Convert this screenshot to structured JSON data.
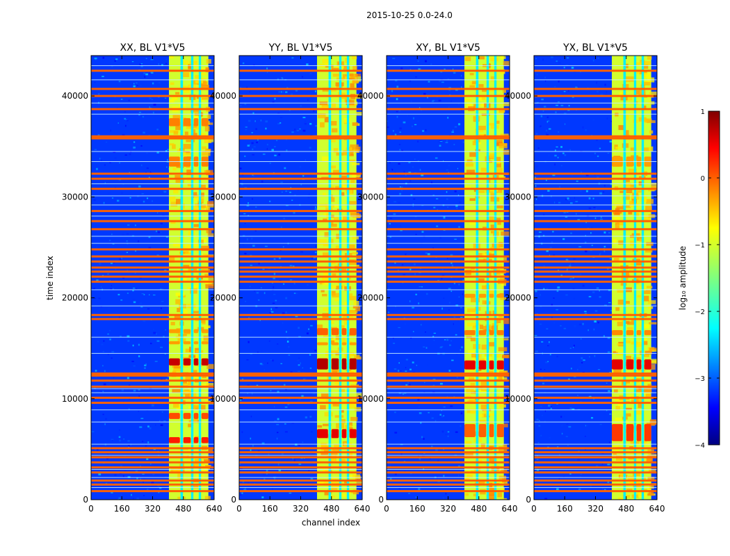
{
  "chart_data": {
    "type": "heatmap",
    "suptitle": "2015-10-25 0.0-24.0",
    "xlabel": "channel index",
    "ylabel": "time index",
    "xlim": [
      0,
      640
    ],
    "ylim": [
      0,
      44000
    ],
    "xticks": [
      0,
      160,
      320,
      480,
      640
    ],
    "xtick_labels": [
      "0",
      "160",
      "320",
      "480",
      "640"
    ],
    "yticks": [
      0,
      10000,
      20000,
      30000,
      40000
    ],
    "ytick_labels": [
      "0",
      "10000",
      "20000",
      "30000",
      "40000"
    ],
    "colorbar": {
      "label": "log₁₀ amplitude",
      "range": [
        -4,
        1
      ],
      "ticks": [
        1,
        0,
        -1,
        -2,
        -3,
        -4
      ],
      "tick_labels": [
        "1",
        "0",
        "−1",
        "−2",
        "−3",
        "−4"
      ],
      "colormap": "jet"
    },
    "panels": [
      {
        "title": "XX, BL V1*V5",
        "hot_bands": [
          [
            13300,
            14000,
            0.93
          ],
          [
            5600,
            6200,
            0.85
          ],
          [
            8000,
            8600,
            0.8
          ],
          [
            15400,
            15700,
            0.72
          ],
          [
            16500,
            16900,
            0.72
          ],
          [
            33000,
            34000,
            0.75
          ],
          [
            37000,
            37800,
            0.75
          ]
        ]
      },
      {
        "title": "YY, BL V1*V5",
        "hot_bands": [
          [
            12900,
            14000,
            0.95
          ],
          [
            6100,
            7000,
            0.9
          ],
          [
            16300,
            17000,
            0.78
          ],
          [
            15300,
            15600,
            0.72
          ]
        ]
      },
      {
        "title": "XY, BL V1*V5",
        "hot_bands": [
          [
            12900,
            13800,
            0.9
          ],
          [
            6200,
            7500,
            0.78
          ],
          [
            16300,
            16800,
            0.75
          ],
          [
            20000,
            20400,
            0.72
          ]
        ]
      },
      {
        "title": "YX, BL V1*V5",
        "hot_bands": [
          [
            12900,
            13900,
            0.9
          ],
          [
            5800,
            7500,
            0.82
          ],
          [
            16300,
            16800,
            0.74
          ],
          [
            33000,
            34000,
            0.72
          ]
        ]
      }
    ],
    "rfi_channel_block": [
      405,
      610
    ],
    "rfi_gap_channels": [
      [
        465,
        478
      ],
      [
        520,
        532
      ],
      [
        560,
        572
      ]
    ],
    "background_level": 0.18,
    "rfi_block_level": 0.58,
    "flagged_time_rows": [
      850,
      1500,
      1900,
      2700,
      3200,
      3700,
      4200,
      4700,
      5100,
      9600,
      10100,
      11200,
      11800,
      12300,
      12500,
      17900,
      18300,
      21600,
      22100,
      22600,
      23000,
      23600,
      24100,
      24800,
      26800,
      27600,
      28600,
      30800,
      31800,
      32300,
      35800,
      36000,
      38700,
      40000,
      40700,
      42500
    ],
    "thin_time_rows": [
      1200,
      2200,
      3000,
      4400,
      5500,
      7700,
      8900,
      10600,
      11000,
      14500,
      16100,
      19200,
      20800,
      25400,
      26100,
      28100,
      29200,
      30100,
      31300,
      33500,
      34500,
      38200,
      39300,
      41600,
      43000
    ]
  }
}
